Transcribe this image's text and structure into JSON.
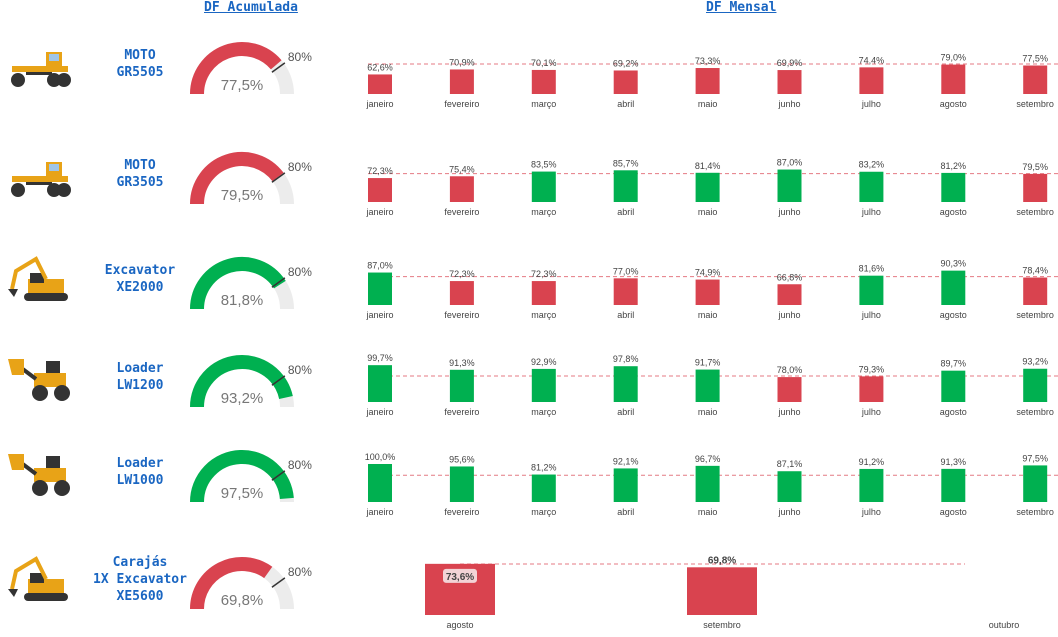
{
  "headers": {
    "acumulada": "DF Acumulada",
    "mensal": "DF Mensal"
  },
  "colors": {
    "red": "#d9434f",
    "green": "#00b050",
    "track": "#ececec",
    "target": "#d9434f"
  },
  "machines": [
    {
      "icon": "motor-grader-icon",
      "name_lines": [
        "MOTO",
        "GR5505"
      ],
      "gauge": {
        "value": 77.5,
        "value_label": "77,5%",
        "target": 80,
        "target_label": "80%",
        "status": "red"
      },
      "chart_data": {
        "type": "bar",
        "categories": [
          "janeiro",
          "fevereiro",
          "março",
          "abril",
          "maio",
          "junho",
          "julho",
          "agosto",
          "setembro"
        ],
        "values": [
          62.6,
          70.9,
          70.1,
          69.2,
          73.3,
          69.9,
          74.4,
          79.0,
          77.5
        ],
        "labels": [
          "62,6%",
          "70,9%",
          "70,1%",
          "69,2%",
          "73,3%",
          "69,9%",
          "74,4%",
          "79,0%",
          "77,5%"
        ],
        "status": [
          "red",
          "red",
          "red",
          "red",
          "red",
          "red",
          "red",
          "red",
          "red"
        ],
        "target": 80,
        "ylim": [
          0,
          100
        ]
      }
    },
    {
      "icon": "motor-grader-icon",
      "name_lines": [
        "MOTO",
        "GR3505"
      ],
      "gauge": {
        "value": 79.5,
        "value_label": "79,5%",
        "target": 80,
        "target_label": "80%",
        "status": "red"
      },
      "chart_data": {
        "type": "bar",
        "categories": [
          "janeiro",
          "fevereiro",
          "março",
          "abril",
          "maio",
          "junho",
          "julho",
          "agosto",
          "setembro"
        ],
        "values": [
          72.3,
          75.4,
          83.5,
          85.7,
          81.4,
          87.0,
          83.2,
          81.2,
          79.5
        ],
        "labels": [
          "72,3%",
          "75,4%",
          "83,5%",
          "85,7%",
          "81,4%",
          "87,0%",
          "83,2%",
          "81,2%",
          "79,5%"
        ],
        "status": [
          "red",
          "red",
          "green",
          "green",
          "green",
          "green",
          "green",
          "green",
          "red"
        ],
        "target": 80,
        "ylim": [
          0,
          100
        ]
      }
    },
    {
      "icon": "excavator-icon",
      "name_lines": [
        "Excavator",
        "XE2000"
      ],
      "gauge": {
        "value": 81.8,
        "value_label": "81,8%",
        "target": 80,
        "target_label": "80%",
        "status": "green"
      },
      "chart_data": {
        "type": "bar",
        "categories": [
          "janeiro",
          "fevereiro",
          "março",
          "abril",
          "maio",
          "junho",
          "julho",
          "agosto",
          "setembro"
        ],
        "values": [
          87.0,
          72.3,
          72.3,
          77.0,
          74.9,
          66.8,
          81.6,
          90.3,
          78.4
        ],
        "labels": [
          "87,0%",
          "72,3%",
          "72,3%",
          "77,0%",
          "74,9%",
          "66,8%",
          "81,6%",
          "90,3%",
          "78,4%"
        ],
        "status": [
          "green",
          "red",
          "red",
          "red",
          "red",
          "red",
          "green",
          "green",
          "red"
        ],
        "target": 80,
        "ylim": [
          0,
          100
        ]
      }
    },
    {
      "icon": "wheel-loader-icon",
      "name_lines": [
        "Loader",
        "LW1200"
      ],
      "gauge": {
        "value": 93.2,
        "value_label": "93,2%",
        "target": 80,
        "target_label": "80%",
        "status": "green"
      },
      "chart_data": {
        "type": "bar",
        "categories": [
          "janeiro",
          "fevereiro",
          "março",
          "abril",
          "maio",
          "junho",
          "julho",
          "agosto",
          "setembro"
        ],
        "values": [
          99.7,
          91.3,
          92.9,
          97.8,
          91.7,
          78.0,
          79.3,
          89.7,
          93.2
        ],
        "labels": [
          "99,7%",
          "91,3%",
          "92,9%",
          "97,8%",
          "91,7%",
          "78,0%",
          "79,3%",
          "89,7%",
          "93,2%"
        ],
        "status": [
          "green",
          "green",
          "green",
          "green",
          "green",
          "red",
          "red",
          "green",
          "green"
        ],
        "target": 80,
        "ylim": [
          0,
          100
        ]
      }
    },
    {
      "icon": "wheel-loader-icon",
      "name_lines": [
        "Loader",
        "LW1000"
      ],
      "gauge": {
        "value": 97.5,
        "value_label": "97,5%",
        "target": 80,
        "target_label": "80%",
        "status": "green"
      },
      "chart_data": {
        "type": "bar",
        "categories": [
          "janeiro",
          "fevereiro",
          "março",
          "abril",
          "maio",
          "junho",
          "julho",
          "agosto",
          "setembro"
        ],
        "values": [
          100.0,
          95.6,
          81.2,
          92.1,
          96.7,
          87.1,
          91.2,
          91.3,
          97.5
        ],
        "labels": [
          "100,0%",
          "95,6%",
          "81,2%",
          "92,1%",
          "96,7%",
          "87,1%",
          "91,2%",
          "91,3%",
          "97,5%"
        ],
        "status": [
          "green",
          "green",
          "green",
          "green",
          "green",
          "green",
          "green",
          "green",
          "green"
        ],
        "target": 80,
        "ylim": [
          0,
          100
        ]
      }
    },
    {
      "icon": "excavator-icon",
      "name_lines": [
        "Carajás",
        "1X Excavator",
        "XE5600"
      ],
      "gauge": {
        "value": 69.8,
        "value_label": "69,8%",
        "target": 80,
        "target_label": "80%",
        "status": "red"
      },
      "chart_data": {
        "type": "bar",
        "categories": [
          "agosto",
          "setembro",
          "outubro"
        ],
        "values": [
          73.6,
          69.8,
          null
        ],
        "labels": [
          "73,6%",
          "69,8%",
          ""
        ],
        "status": [
          "red",
          "red",
          ""
        ],
        "target": 80,
        "ylim": [
          0,
          100
        ]
      }
    }
  ]
}
